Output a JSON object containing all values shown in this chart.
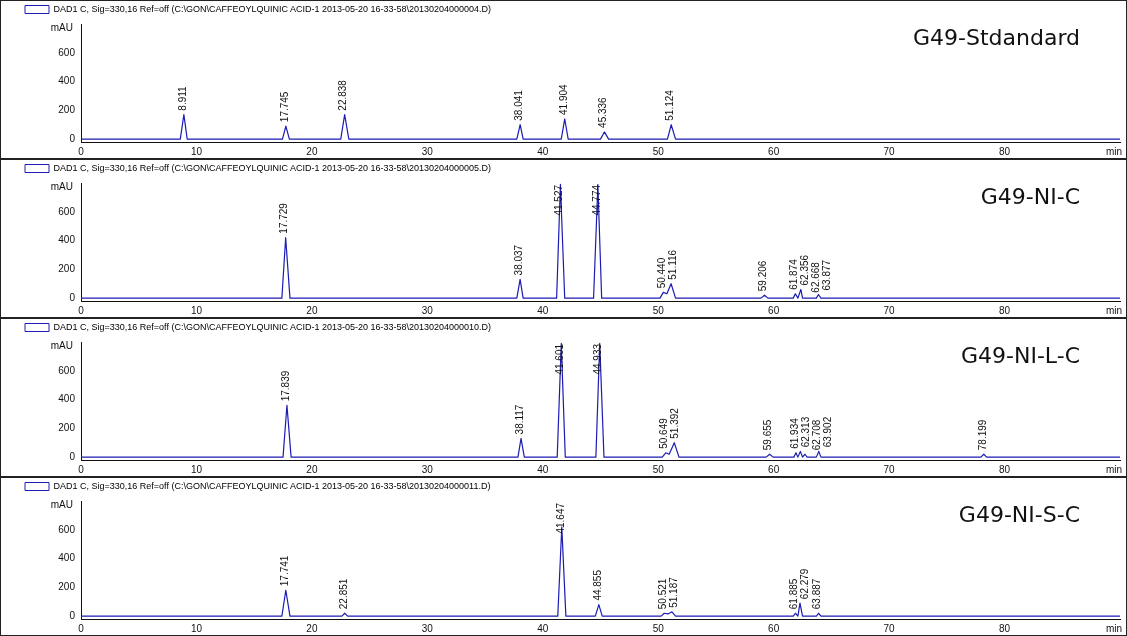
{
  "chart_data": [
    {
      "type": "line",
      "xlabel": "min",
      "ylabel": "mAU",
      "xlim": [
        0,
        90
      ],
      "xticks": [
        0,
        10,
        20,
        30,
        40,
        50,
        60,
        70,
        80
      ],
      "ylim": [
        -20,
        800
      ],
      "yticks": [
        0,
        200,
        400,
        600
      ],
      "grid": false,
      "legend": "top",
      "marker": "none",
      "line_style": "solid",
      "series": [
        {
          "name": "DAD1 C, Sig=330,16 Ref=off (C:\\GON\\CAFFEOYLQUINIC ACID-1 2013-05-20 16-33-58\\20130204000004.D)",
          "color": "#1c1cb4",
          "x": [
            0,
            8.6,
            8.911,
            9.2,
            17.45,
            17.745,
            18.05,
            22.5,
            22.838,
            23.2,
            37.75,
            38.041,
            38.3,
            41.6,
            41.904,
            42.2,
            45.0,
            45.336,
            45.7,
            50.8,
            51.124,
            51.5,
            90
          ],
          "values": [
            0,
            0,
            170,
            0,
            0,
            90,
            0,
            0,
            170,
            0,
            0,
            100,
            0,
            0,
            140,
            0,
            0,
            50,
            0,
            0,
            100,
            0,
            0
          ]
        }
      ],
      "annotations": [
        "G49-Stdandard",
        {
          "text": "8.911",
          "x": 8.911,
          "y": 170
        },
        {
          "text": "17.745",
          "x": 17.745,
          "y": 90
        },
        {
          "text": "22.838",
          "x": 22.838,
          "y": 170
        },
        {
          "text": "38.041",
          "x": 38.041,
          "y": 100
        },
        {
          "text": "41.904",
          "x": 41.904,
          "y": 140
        },
        {
          "text": "45.336",
          "x": 45.336,
          "y": 50
        },
        {
          "text": "51.124",
          "x": 51.124,
          "y": 100
        }
      ]
    },
    {
      "type": "line",
      "xlabel": "min",
      "ylabel": "mAU",
      "xlim": [
        0,
        90
      ],
      "xticks": [
        0,
        10,
        20,
        30,
        40,
        50,
        60,
        70,
        80
      ],
      "ylim": [
        -20,
        800
      ],
      "yticks": [
        0,
        200,
        400,
        600
      ],
      "grid": false,
      "legend": "top",
      "marker": "none",
      "line_style": "solid",
      "series": [
        {
          "name": "DAD1 C, Sig=330,16 Ref=off (C:\\GON\\CAFFEOYLQUINIC ACID-1 2013-05-20 16-33-58\\20130204000005.D)",
          "color": "#1c1cb4",
          "x": [
            0,
            9,
            17.4,
            17.729,
            18.1,
            37.75,
            38.037,
            38.3,
            41.2,
            41.527,
            41.9,
            44.4,
            44.774,
            45.1,
            50.15,
            50.44,
            50.75,
            51.116,
            51.5,
            58.9,
            59.206,
            59.5,
            61.7,
            61.874,
            62.1,
            62.356,
            62.5,
            63.7,
            63.877,
            64.1,
            90
          ],
          "values": [
            0,
            0,
            0,
            420,
            0,
            0,
            130,
            0,
            0,
            790,
            0,
            0,
            790,
            0,
            0,
            40,
            30,
            100,
            0,
            0,
            20,
            0,
            0,
            30,
            0,
            60,
            0,
            0,
            25,
            0,
            0
          ]
        }
      ],
      "annotations": [
        "G49-NI-C",
        {
          "text": "17.729",
          "x": 17.729,
          "y": 420
        },
        {
          "text": "38.037",
          "x": 38.037,
          "y": 130
        },
        {
          "text": "41.527",
          "x": 41.527,
          "y": 790
        },
        {
          "text": "44.774",
          "x": 44.774,
          "y": 790
        },
        {
          "text": "50.440",
          "x": 50.44,
          "y": 40
        },
        {
          "text": "51.116",
          "x": 51.116,
          "y": 100
        },
        {
          "text": "59.206",
          "x": 59.206,
          "y": 20
        },
        {
          "text": "61.874",
          "x": 61.874,
          "y": 30
        },
        {
          "text": "62.356",
          "x": 62.356,
          "y": 60
        },
        {
          "text": "62.668",
          "x": 62.668,
          "y": 10
        },
        {
          "text": "63.877",
          "x": 63.877,
          "y": 25
        }
      ]
    },
    {
      "type": "line",
      "xlabel": "min",
      "ylabel": "mAU",
      "xlim": [
        0,
        90
      ],
      "xticks": [
        0,
        10,
        20,
        30,
        40,
        50,
        60,
        70,
        80
      ],
      "ylim": [
        -20,
        800
      ],
      "yticks": [
        0,
        200,
        400,
        600
      ],
      "grid": false,
      "legend": "top",
      "marker": "none",
      "line_style": "solid",
      "series": [
        {
          "name": "DAD1 C, Sig=330,16 Ref=off (C:\\GON\\CAFFEOYLQUINIC ACID-1 2013-05-20 16-33-58\\20130204000010.D)",
          "color": "#1c1cb4",
          "x": [
            0,
            17.5,
            17.839,
            18.2,
            37.85,
            38.117,
            38.4,
            41.25,
            41.601,
            41.95,
            44.6,
            44.933,
            45.3,
            50.35,
            50.649,
            50.95,
            51.392,
            51.8,
            59.35,
            59.655,
            59.95,
            61.75,
            61.934,
            62.1,
            62.313,
            62.5,
            62.708,
            62.9,
            63.7,
            63.902,
            64.1,
            77.95,
            78.199,
            78.45,
            90
          ],
          "values": [
            0,
            0,
            360,
            0,
            0,
            130,
            0,
            0,
            790,
            0,
            0,
            790,
            0,
            0,
            30,
            20,
            100,
            0,
            0,
            20,
            0,
            0,
            30,
            0,
            40,
            0,
            20,
            0,
            0,
            40,
            0,
            0,
            20,
            0,
            0
          ]
        }
      ],
      "annotations": [
        "G49-NI-L-C",
        {
          "text": "17.839",
          "x": 17.839,
          "y": 360
        },
        {
          "text": "38.117",
          "x": 38.117,
          "y": 130
        },
        {
          "text": "41.601",
          "x": 41.601,
          "y": 790
        },
        {
          "text": "44.933",
          "x": 44.933,
          "y": 790
        },
        {
          "text": "50.649",
          "x": 50.649,
          "y": 30
        },
        {
          "text": "51.392",
          "x": 51.392,
          "y": 100
        },
        {
          "text": "59.655",
          "x": 59.655,
          "y": 20
        },
        {
          "text": "61.934",
          "x": 61.934,
          "y": 30
        },
        {
          "text": "62.313",
          "x": 62.313,
          "y": 40
        },
        {
          "text": "62.708",
          "x": 62.708,
          "y": 20
        },
        {
          "text": "63.902",
          "x": 63.902,
          "y": 40
        },
        {
          "text": "78.199",
          "x": 78.199,
          "y": 20
        }
      ]
    },
    {
      "type": "line",
      "xlabel": "min",
      "ylabel": "mAU",
      "xlim": [
        0,
        90
      ],
      "xticks": [
        0,
        10,
        20,
        30,
        40,
        50,
        60,
        70,
        80
      ],
      "ylim": [
        -20,
        800
      ],
      "yticks": [
        0,
        200,
        400,
        600
      ],
      "grid": false,
      "legend": "top",
      "marker": "none",
      "line_style": "solid",
      "series": [
        {
          "name": "DAD1 C, Sig=330,16 Ref=off (C:\\GON\\CAFFEOYLQUINIC ACID-1 2013-05-20 16-33-58\\20130204000011.D)",
          "color": "#1c1cb4",
          "x": [
            0,
            17.4,
            17.741,
            18.1,
            22.6,
            22.851,
            23.1,
            41.3,
            41.647,
            42.0,
            44.55,
            44.855,
            45.15,
            50.25,
            50.521,
            50.85,
            51.187,
            51.5,
            61.7,
            61.885,
            62.1,
            62.279,
            62.5,
            63.7,
            63.887,
            64.1,
            90
          ],
          "values": [
            0,
            0,
            180,
            0,
            0,
            20,
            0,
            0,
            620,
            0,
            0,
            80,
            0,
            0,
            20,
            15,
            30,
            0,
            0,
            20,
            0,
            90,
            0,
            0,
            20,
            0,
            0
          ]
        }
      ],
      "annotations": [
        "G49-NI-S-C",
        {
          "text": "17.741",
          "x": 17.741,
          "y": 180
        },
        {
          "text": "22.851",
          "x": 22.851,
          "y": 20
        },
        {
          "text": "41.647",
          "x": 41.647,
          "y": 620
        },
        {
          "text": "44.855",
          "x": 44.855,
          "y": 80
        },
        {
          "text": "50.521",
          "x": 50.521,
          "y": 20
        },
        {
          "text": "51.187",
          "x": 51.187,
          "y": 30
        },
        {
          "text": "61.885",
          "x": 61.885,
          "y": 20
        },
        {
          "text": "62.279",
          "x": 62.279,
          "y": 90
        },
        {
          "text": "63.887",
          "x": 63.887,
          "y": 20
        }
      ]
    }
  ]
}
